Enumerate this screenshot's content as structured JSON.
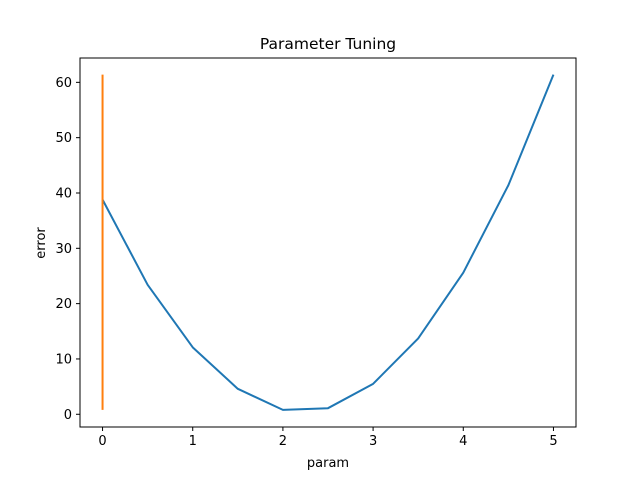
{
  "chart_data": {
    "type": "line",
    "title": "Parameter Tuning",
    "xlabel": "param",
    "ylabel": "error",
    "xlim": [
      -0.25,
      5.25
    ],
    "ylim": [
      -2.3,
      64.4
    ],
    "xticks": [
      0,
      1,
      2,
      3,
      4,
      5
    ],
    "yticks": [
      0,
      10,
      20,
      30,
      40,
      50,
      60
    ],
    "grid": false,
    "series": [
      {
        "color": "#1f77b4",
        "x": [
          0,
          0.5,
          1,
          1.5,
          2,
          2.5,
          3,
          3.5,
          4,
          4.5,
          5
        ],
        "y": [
          38.8,
          23.4,
          12.1,
          4.6,
          0.8,
          1.1,
          5.5,
          13.7,
          25.6,
          41.4,
          61.4
        ]
      },
      {
        "color": "#ff7f0e",
        "x": [
          0,
          0
        ],
        "y": [
          0.8,
          61.4
        ]
      }
    ]
  }
}
